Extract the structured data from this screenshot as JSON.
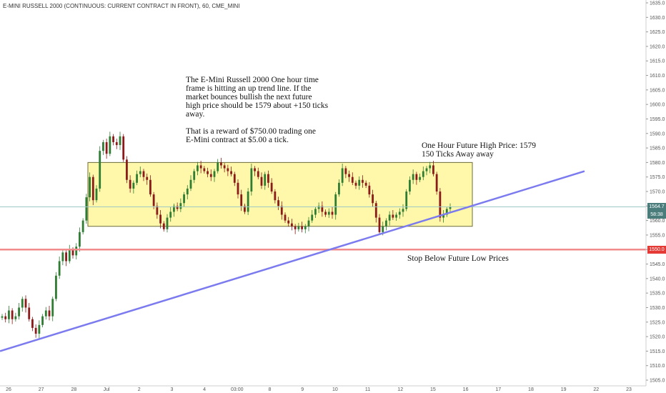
{
  "header": {
    "symbol_title": "E-MINI RUSSELL 2000 (CONTINUOUS: CURRENT CONTRACT IN FRONT), 60, CME_MINI"
  },
  "annotations": {
    "main_note": "The E-Mini Russell 2000 One hour time\nframe is hitting an up trend line. If the\nmarket bounces bullish the next future\nhigh price should be 1579 about +150 ticks\naway.\n\nThat is a reward of $750.00 trading one\nE-Mini contract at $5.00 a tick.",
    "target_note": "One Hour Future High Price: 1579\n150 Ticks Away away",
    "stop_note": "Stop Below Future Low Prices"
  },
  "price_scale": {
    "current_price_label": "1564.7",
    "countdown_label": "58:38",
    "stop_price_label": "1550.0",
    "current_tag_color": "#4a7c7c",
    "countdown_tag_color": "#4a7c7c",
    "stop_tag_color": "#e53935"
  },
  "colors": {
    "up_candle": "#2e7d32",
    "down_candle": "#8b1a1a",
    "range_box_fill": "#fff68f",
    "range_box_border": "#6b6b3a",
    "trend_line": "#7b7bef",
    "stop_line": "#f28b8b",
    "current_price_line": "#9ec9c4"
  },
  "chart_data": {
    "type": "candlestick",
    "y_axis": {
      "min": 1505,
      "max": 1635,
      "tick_step": 5,
      "ticks": [
        1505,
        1510,
        1515,
        1520,
        1525,
        1530,
        1535,
        1540,
        1545,
        1550,
        1555,
        1560,
        1565,
        1570,
        1575,
        1580,
        1585,
        1590,
        1595,
        1600,
        1605,
        1610,
        1615,
        1620,
        1625,
        1630,
        1635
      ]
    },
    "x_axis": {
      "tick_labels": [
        "26",
        "27",
        "28",
        "Jul",
        "2",
        "3",
        "4",
        "03:00",
        "8",
        "9",
        "10",
        "11",
        "12",
        "15",
        "16",
        "17",
        "18",
        "19",
        "22",
        "23"
      ]
    },
    "series": [
      {
        "close_path": [
          1527,
          1526,
          1529,
          1526,
          1527,
          1530,
          1533,
          1530,
          1526,
          1523,
          1521,
          1524,
          1527,
          1529,
          1527,
          1533,
          1541,
          1546,
          1549,
          1546,
          1550,
          1548,
          1551,
          1556,
          1560,
          1568,
          1575,
          1567,
          1571,
          1584,
          1587,
          1583,
          1589,
          1587,
          1586,
          1589,
          1581,
          1574,
          1571,
          1573,
          1576,
          1577,
          1575,
          1574,
          1569,
          1565,
          1562,
          1559,
          1557,
          1561,
          1563,
          1565,
          1564,
          1566,
          1569,
          1571,
          1574,
          1577,
          1579,
          1578,
          1577,
          1576,
          1575,
          1577,
          1580,
          1579,
          1578,
          1577,
          1576,
          1573,
          1569,
          1565,
          1563,
          1570,
          1578,
          1577,
          1575,
          1572,
          1576,
          1573,
          1570,
          1567,
          1565,
          1562,
          1560,
          1559,
          1558,
          1557,
          1558,
          1557,
          1558,
          1560,
          1562,
          1564,
          1565,
          1563,
          1562,
          1563,
          1562,
          1569,
          1573,
          1578,
          1576,
          1575,
          1573,
          1572,
          1574,
          1573,
          1572,
          1569,
          1566,
          1561,
          1556,
          1558,
          1560,
          1562,
          1561,
          1562,
          1563,
          1564,
          1570,
          1574,
          1576,
          1574,
          1575,
          1577,
          1578,
          1579,
          1576,
          1570,
          1561,
          1562,
          1564,
          1564.7
        ]
      }
    ],
    "levels": {
      "range_box": {
        "low": 1558,
        "high": 1580
      },
      "target_high": 1579,
      "stop_level": 1550,
      "current_price": 1564.7,
      "trend_line": {
        "from_price": 1515,
        "to_price": 1577
      }
    }
  }
}
